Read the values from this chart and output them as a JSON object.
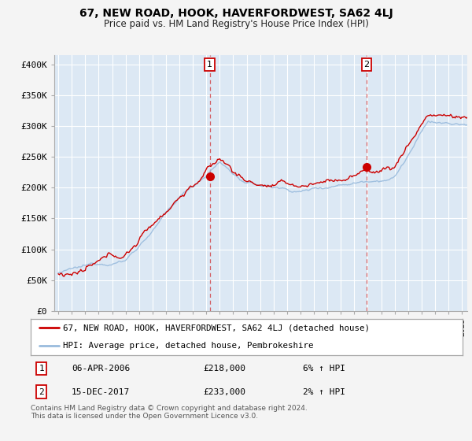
{
  "title": "67, NEW ROAD, HOOK, HAVERFORDWEST, SA62 4LJ",
  "subtitle": "Price paid vs. HM Land Registry's House Price Index (HPI)",
  "ylabel_ticks": [
    "£0",
    "£50K",
    "£100K",
    "£150K",
    "£200K",
    "£250K",
    "£300K",
    "£350K",
    "£400K"
  ],
  "ytick_vals": [
    0,
    50000,
    100000,
    150000,
    200000,
    250000,
    300000,
    350000,
    400000
  ],
  "ylim": [
    0,
    415000
  ],
  "xlim_start": 1994.7,
  "xlim_end": 2025.4,
  "red_color": "#cc0000",
  "blue_color": "#99bbdd",
  "marker1_date": 2006.25,
  "marker2_date": 2017.92,
  "marker1_price": 218000,
  "marker2_price": 233000,
  "legend_line1": "67, NEW ROAD, HOOK, HAVERFORDWEST, SA62 4LJ (detached house)",
  "legend_line2": "HPI: Average price, detached house, Pembrokeshire",
  "annot1_num": "1",
  "annot1_date": "06-APR-2006",
  "annot1_price": "£218,000",
  "annot1_hpi": "6% ↑ HPI",
  "annot2_num": "2",
  "annot2_date": "15-DEC-2017",
  "annot2_price": "£233,000",
  "annot2_hpi": "2% ↑ HPI",
  "footnote": "Contains HM Land Registry data © Crown copyright and database right 2024.\nThis data is licensed under the Open Government Licence v3.0.",
  "fig_bg": "#f4f4f4",
  "plot_bg": "#dce8f4"
}
